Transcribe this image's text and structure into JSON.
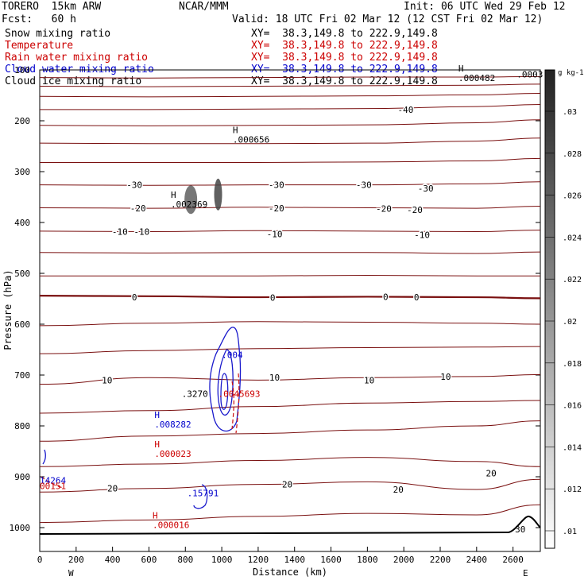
{
  "header": {
    "model": "TORERO  15km ARW",
    "org": "NCAR/MMM",
    "init": "Init: 06 UTC Wed 29 Feb 12",
    "fcst": "Fcst:   60 h",
    "valid": "Valid: 18 UTC Fri 02 Mar 12 (12 CST Fri 02 Mar 12)",
    "fields": [
      {
        "label": "Snow mixing ratio",
        "xy": "XY=  38.3,149.8 to 222.9,149.8",
        "color": "#000000"
      },
      {
        "label": "Temperature",
        "xy": "XY=  38.3,149.8 to 222.9,149.8",
        "color": "#cc0000"
      },
      {
        "label": "Rain water mixing ratio",
        "xy": "XY=  38.3,149.8 to 222.9,149.8",
        "color": "#cc0000"
      },
      {
        "label": "Cloud water mixing ratio",
        "xy": "XY=  38.3,149.8 to 222.9,149.8",
        "color": "#0000cc"
      },
      {
        "label": "Cloud ice mixing ratio",
        "xy": "XY=  38.3,149.8 to 222.9,149.8",
        "color": "#000000"
      }
    ]
  },
  "chart_data": {
    "type": "contour",
    "xlabel": "Distance (km)",
    "ylabel": "Pressure (hPa)",
    "xlim": [
      0,
      2750
    ],
    "ylim": [
      1050,
      100
    ],
    "x_ticks": [
      0,
      200,
      400,
      600,
      800,
      1000,
      1200,
      1400,
      1600,
      1800,
      2000,
      2200,
      2400,
      2600
    ],
    "y_ticks": [
      100,
      200,
      300,
      400,
      500,
      600,
      700,
      800,
      900,
      1000
    ],
    "x_end_labels": {
      "left": "W",
      "right": "E"
    },
    "colorbar": {
      "title": "g kg-1",
      "ticks": [
        ".01",
        ".012",
        ".014",
        ".016",
        ".018",
        ".02",
        ".022",
        ".024",
        ".026",
        ".028",
        ".03"
      ]
    },
    "temperature_contours": [
      {
        "p": [
          115,
          116,
          115,
          114,
          114,
          113
        ],
        "x": [
          0,
          600,
          1200,
          1800,
          2400,
          2750
        ]
      },
      {
        "p": [
          132,
          133,
          132,
          131,
          130,
          128
        ],
        "x": [
          0,
          600,
          1200,
          1800,
          2400,
          2750
        ]
      },
      {
        "p": [
          152,
          153,
          152,
          151,
          149,
          146
        ],
        "x": [
          0,
          600,
          1200,
          1800,
          2400,
          2750
        ]
      },
      {
        "p": [
          178,
          178,
          177,
          176,
          172,
          168
        ],
        "x": [
          0,
          600,
          1200,
          1800,
          2400,
          2750
        ]
      },
      {
        "p": [
          209,
          210,
          209,
          208,
          204,
          198
        ],
        "x": [
          0,
          600,
          1200,
          1800,
          2400,
          2750
        ]
      },
      {
        "p": [
          244,
          245,
          245,
          244,
          240,
          234
        ],
        "x": [
          0,
          600,
          1200,
          1800,
          2400,
          2750
        ]
      },
      {
        "p": [
          282,
          282,
          282,
          281,
          279,
          274
        ],
        "x": [
          0,
          600,
          1200,
          1800,
          2400,
          2750
        ]
      },
      {
        "p": [
          326,
          327,
          326,
          326,
          324,
          320
        ],
        "x": [
          0,
          600,
          1200,
          1800,
          2400,
          2750
        ]
      },
      {
        "p": [
          371,
          372,
          370,
          371,
          372,
          368
        ],
        "x": [
          0,
          600,
          1200,
          1800,
          2400,
          2750
        ]
      },
      {
        "p": [
          417,
          418,
          416,
          417,
          418,
          415
        ],
        "x": [
          0,
          600,
          1200,
          1800,
          2400,
          2750
        ]
      },
      {
        "p": [
          459,
          460,
          459,
          459,
          461,
          458
        ],
        "x": [
          0,
          600,
          1200,
          1800,
          2400,
          2750
        ]
      },
      {
        "p": [
          505,
          505,
          505,
          504,
          505,
          505
        ],
        "x": [
          0,
          600,
          1200,
          1800,
          2400,
          2750
        ]
      },
      {
        "p": [
          544,
          545,
          547,
          546,
          547,
          549
        ],
        "x": [
          0,
          600,
          1200,
          1800,
          2400,
          2750
        ]
      },
      {
        "p": [
          603,
          598,
          595,
          596,
          598,
          600
        ],
        "x": [
          0,
          600,
          1200,
          1800,
          2400,
          2750
        ]
      },
      {
        "p": [
          658,
          652,
          648,
          646,
          645,
          644
        ],
        "x": [
          0,
          600,
          1200,
          1800,
          2400,
          2750
        ]
      },
      {
        "p": [
          718,
          705,
          710,
          705,
          703,
          699
        ],
        "x": [
          0,
          600,
          1200,
          1800,
          2400,
          2750
        ]
      },
      {
        "p": [
          775,
          770,
          762,
          755,
          752,
          750
        ],
        "x": [
          0,
          600,
          1200,
          1800,
          2400,
          2750
        ]
      },
      {
        "p": [
          830,
          820,
          815,
          808,
          800,
          790
        ],
        "x": [
          0,
          600,
          1200,
          1800,
          2400,
          2750
        ]
      },
      {
        "p": [
          880,
          875,
          868,
          862,
          870,
          880
        ],
        "x": [
          0,
          600,
          1200,
          1800,
          2400,
          2750
        ]
      },
      {
        "p": [
          930,
          923,
          915,
          910,
          925,
          905
        ],
        "x": [
          0,
          600,
          1200,
          1800,
          2400,
          2750
        ]
      },
      {
        "p": [
          990,
          985,
          978,
          972,
          975,
          955
        ],
        "x": [
          0,
          600,
          1200,
          1800,
          2400,
          2750
        ]
      }
    ],
    "temperature_labels": [
      {
        "text": "-40",
        "x": 2010,
        "p": 178
      },
      {
        "text": "-30",
        "x": 520,
        "p": 326
      },
      {
        "text": "-30",
        "x": 1300,
        "p": 326
      },
      {
        "text": "-30",
        "x": 1780,
        "p": 326
      },
      {
        "text": "-30",
        "x": 2120,
        "p": 333
      },
      {
        "text": "-20",
        "x": 540,
        "p": 372
      },
      {
        "text": "-20",
        "x": 1300,
        "p": 372
      },
      {
        "text": "-20",
        "x": 1890,
        "p": 373
      },
      {
        "text": "-20",
        "x": 2060,
        "p": 375
      },
      {
        "text": "-10",
        "x": 440,
        "p": 418
      },
      {
        "text": "-10",
        "x": 560,
        "p": 418
      },
      {
        "text": "-10",
        "x": 1290,
        "p": 423
      },
      {
        "text": "-10",
        "x": 2100,
        "p": 424
      },
      {
        "text": "0",
        "x": 520,
        "p": 547
      },
      {
        "text": "0",
        "x": 1280,
        "p": 548
      },
      {
        "text": "0",
        "x": 1900,
        "p": 546
      },
      {
        "text": "0",
        "x": 2070,
        "p": 547
      },
      {
        "text": "10",
        "x": 370,
        "p": 710
      },
      {
        "text": "10",
        "x": 1290,
        "p": 705
      },
      {
        "text": "10",
        "x": 1810,
        "p": 710
      },
      {
        "text": "10",
        "x": 2230,
        "p": 703
      },
      {
        "text": "20",
        "x": 400,
        "p": 923
      },
      {
        "text": "20",
        "x": 1360,
        "p": 915
      },
      {
        "text": "20",
        "x": 1970,
        "p": 925
      },
      {
        "text": "20",
        "x": 2480,
        "p": 893
      },
      {
        "text": "30",
        "x": 2640,
        "p": 1003
      }
    ],
    "annotations": [
      {
        "mark": "H",
        "value": ".000656",
        "x": 1060,
        "p": 240,
        "color": "#000000"
      },
      {
        "mark": "H",
        "value": ".000482",
        "x": 2300,
        "p": 119,
        "color": "#000000"
      },
      {
        "mark": "",
        "value": ".0003",
        "x": 2620,
        "p": 112,
        "color": "#000000"
      },
      {
        "mark": "H",
        "value": ".002369",
        "x": 720,
        "p": 367,
        "color": "#000000"
      },
      {
        "mark": "",
        "value": ".004",
        "x": 1000,
        "p": 663,
        "color": "#0000cc"
      },
      {
        "mark": "H",
        "value": ".008282",
        "x": 630,
        "p": 800,
        "color": "#0000cc"
      },
      {
        "mark": "H",
        "value": ".000023",
        "x": 630,
        "p": 858,
        "color": "#cc0000"
      },
      {
        "mark": "",
        "value": "14264",
        "x": 0,
        "p": 910,
        "color": "#0000cc"
      },
      {
        "mark": "",
        "value": "00151",
        "x": 0,
        "p": 921,
        "color": "#cc0000"
      },
      {
        "mark": "",
        "value": ".15791",
        "x": 810,
        "p": 935,
        "color": "#0000cc"
      },
      {
        "mark": "H",
        "value": ".000016",
        "x": 620,
        "p": 998,
        "color": "#cc0000"
      },
      {
        "mark": "",
        "value": ".3270",
        "x": 780,
        "p": 740,
        "color": "#000000"
      },
      {
        "mark": "",
        "value": ".0045693",
        "x": 980,
        "p": 740,
        "color": "#cc0000"
      }
    ]
  }
}
